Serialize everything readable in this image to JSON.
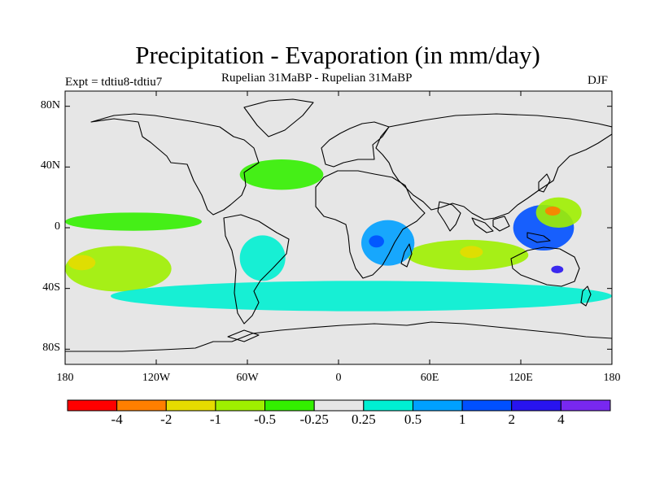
{
  "title": "Precipitation - Evaporation (in mm/day)",
  "experiment_label": "Expt = tdtiu8-tdtiu7",
  "subtitle": "Rupelian  31MaBP - Rupelian  31MaBP",
  "season": "DJF",
  "map": {
    "projection": "cylindrical-equidistant",
    "lon_range": [
      -180,
      180
    ],
    "lat_range": [
      -90,
      90
    ],
    "ocean_neutral_color": "#e6e6e6",
    "coastline_color": "#000000"
  },
  "axes": {
    "y_ticks": [
      {
        "label": "80N",
        "lat": 80
      },
      {
        "label": "40N",
        "lat": 40
      },
      {
        "label": "0",
        "lat": 0
      },
      {
        "label": "40S",
        "lat": -40
      },
      {
        "label": "80S",
        "lat": -80
      }
    ],
    "x_ticks": [
      {
        "label": "180",
        "lon": -180
      },
      {
        "label": "120W",
        "lon": -120
      },
      {
        "label": "60W",
        "lon": -60
      },
      {
        "label": "0",
        "lon": 0
      },
      {
        "label": "60E",
        "lon": 60
      },
      {
        "label": "120E",
        "lon": 120
      },
      {
        "label": "180",
        "lon": 180
      }
    ]
  },
  "colorbar": {
    "colors": [
      "#ff0000",
      "#ff7f00",
      "#e6dc00",
      "#9ff000",
      "#33f000",
      "#e6e6e6",
      "#00f0d2",
      "#00a0ff",
      "#0050ff",
      "#2814f0",
      "#7828f0"
    ],
    "labels": [
      "-4",
      "-2",
      "-1",
      "-0.5",
      "-0.25",
      "0.25",
      "0.5",
      "1",
      "2",
      "4"
    ]
  },
  "chart_data": {
    "type": "heatmap",
    "title": "Precipitation - Evaporation (in mm/day)",
    "subtitle": "Rupelian  31MaBP - Rupelian  31MaBP",
    "units": "mm/day",
    "levels": [
      -4,
      -2,
      -1,
      -0.5,
      -0.25,
      0.25,
      0.5,
      1,
      2,
      4
    ],
    "regions": [
      {
        "name": "tropical-pacific-east-band",
        "lon": [
          -180,
          -90
        ],
        "lat": [
          -2,
          10
        ],
        "level_color": "#33f000"
      },
      {
        "name": "south-pacific-drying",
        "lon": [
          -180,
          -110
        ],
        "lat": [
          -42,
          -12
        ],
        "level_color": "#9ff000"
      },
      {
        "name": "south-pacific-core",
        "lon": [
          -178,
          -160
        ],
        "lat": [
          -28,
          -18
        ],
        "level_color": "#e6dc00"
      },
      {
        "name": "west-pacific-wet",
        "lon": [
          115,
          155
        ],
        "lat": [
          -15,
          15
        ],
        "level_color": "#0050ff"
      },
      {
        "name": "west-pacific-core",
        "lon": [
          140,
          148
        ],
        "lat": [
          -30,
          -25
        ],
        "level_color": "#2814f0"
      },
      {
        "name": "nw-pacific-dry",
        "lon": [
          130,
          160
        ],
        "lat": [
          0,
          20
        ],
        "level_color": "#9ff000"
      },
      {
        "name": "nw-pacific-core",
        "lon": [
          136,
          146
        ],
        "lat": [
          8,
          14
        ],
        "level_color": "#ff7f00"
      },
      {
        "name": "indian-ocean-dry",
        "lon": [
          45,
          125
        ],
        "lat": [
          -28,
          -8
        ],
        "level_color": "#9ff000"
      },
      {
        "name": "indian-ocean-core",
        "lon": [
          80,
          95
        ],
        "lat": [
          -20,
          -12
        ],
        "level_color": "#e6dc00"
      },
      {
        "name": "central-africa-wet",
        "lon": [
          15,
          50
        ],
        "lat": [
          -25,
          5
        ],
        "level_color": "#00a0ff"
      },
      {
        "name": "central-africa-core",
        "lon": [
          20,
          30
        ],
        "lat": [
          -13,
          -5
        ],
        "level_color": "#0050ff"
      },
      {
        "name": "south-america-wet",
        "lon": [
          -65,
          -35
        ],
        "lat": [
          -35,
          -5
        ],
        "level_color": "#00f0d2"
      },
      {
        "name": "north-atlantic-dry",
        "lon": [
          -65,
          -10
        ],
        "lat": [
          25,
          45
        ],
        "level_color": "#33f000"
      },
      {
        "name": "southern-ocean-wet",
        "lon": [
          -150,
          180
        ],
        "lat": [
          -55,
          -35
        ],
        "level_color": "#00f0d2"
      }
    ]
  }
}
